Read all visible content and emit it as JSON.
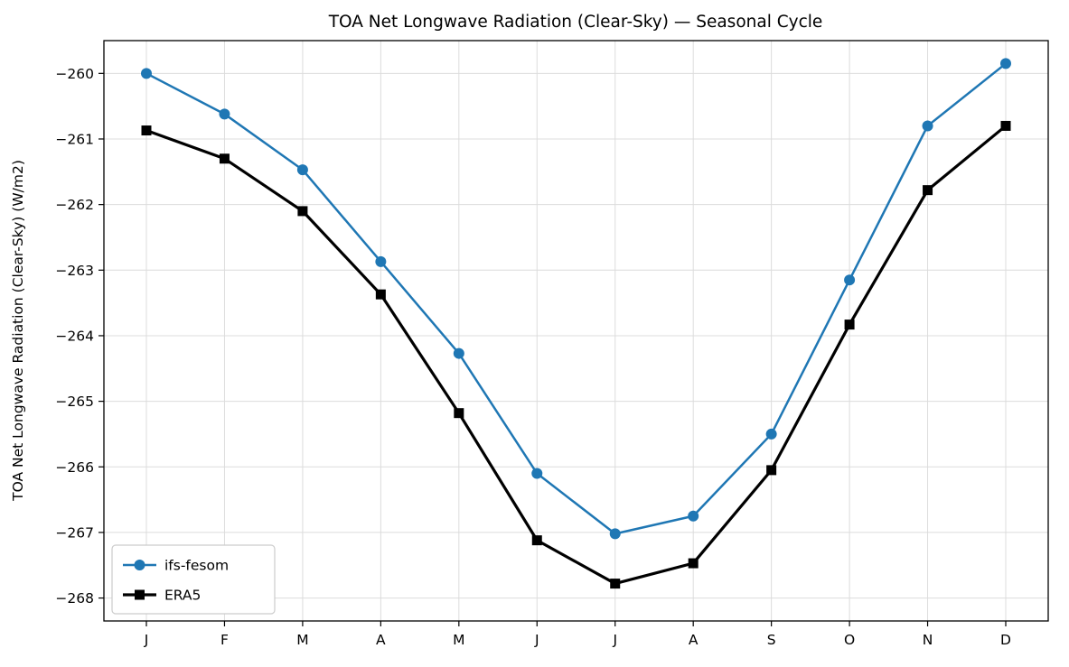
{
  "chart_data": {
    "type": "line",
    "title": "TOA Net Longwave Radiation (Clear-Sky) — Seasonal Cycle",
    "xlabel": "",
    "ylabel": "TOA Net Longwave Radiation (Clear-Sky) (W/m2)",
    "categories": [
      "J",
      "F",
      "M",
      "A",
      "M",
      "J",
      "J",
      "A",
      "S",
      "O",
      "N",
      "D"
    ],
    "series": [
      {
        "name": "ifs-fesom",
        "color": "#1f77b4",
        "marker": "circle",
        "line_width": 2.5,
        "values": [
          -260.0,
          -260.62,
          -261.47,
          -262.87,
          -264.27,
          -266.1,
          -267.02,
          -266.75,
          -265.5,
          -263.15,
          -260.8,
          -259.85
        ]
      },
      {
        "name": "ERA5",
        "color": "#000000",
        "marker": "square",
        "line_width": 3.2,
        "values": [
          -260.87,
          -261.3,
          -262.1,
          -263.37,
          -265.18,
          -267.12,
          -267.78,
          -267.47,
          -266.05,
          -263.83,
          -261.78,
          -260.8
        ]
      }
    ],
    "ylim": [
      -268.35,
      -259.5
    ],
    "yticks": [
      -260,
      -261,
      -262,
      -263,
      -264,
      -265,
      -266,
      -267,
      -268
    ],
    "ytick_labels": [
      "−260",
      "−261",
      "−262",
      "−263",
      "−264",
      "−265",
      "−266",
      "−267",
      "−268"
    ],
    "grid": true,
    "grid_color": "#dcdcdc",
    "legend": {
      "position": "lower left",
      "entries": [
        "ifs-fesom",
        "ERA5"
      ]
    }
  }
}
